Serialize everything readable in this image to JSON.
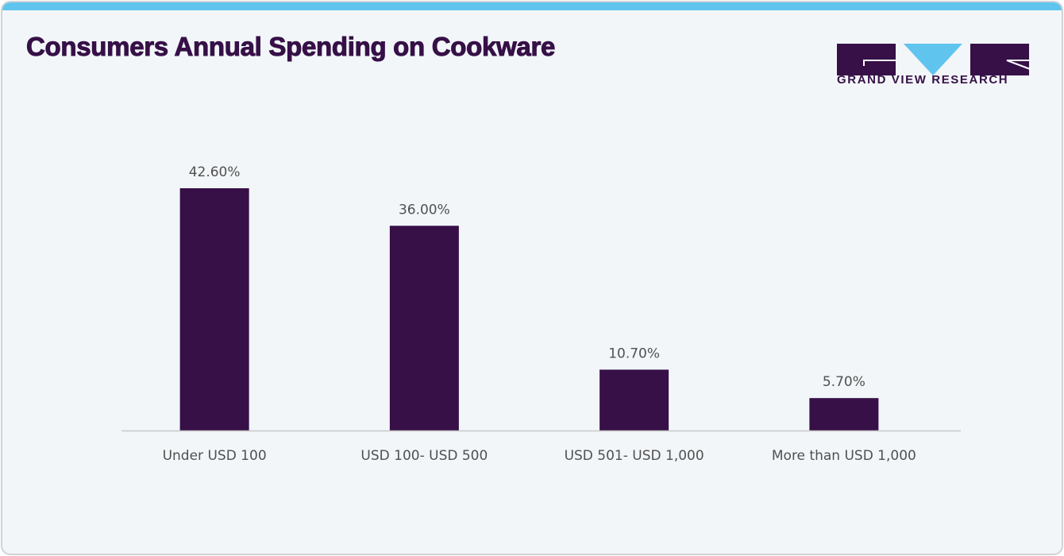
{
  "header": {
    "title": "Consumers Annual Spending on Cookware"
  },
  "brand": {
    "logo_text": "GRAND VIEW RESEARCH",
    "primary_color": "#361047",
    "accent_color": "#5fc5ef"
  },
  "chart_data": {
    "type": "bar",
    "title": "Consumers Annual Spending on Cookware",
    "categories": [
      "Under USD 100",
      "USD 100- USD 500",
      "USD 501- USD 1,000",
      "More than USD 1,000"
    ],
    "values": [
      42.6,
      36.0,
      10.7,
      5.7
    ],
    "data_labels": [
      "42.60%",
      "36.00%",
      "10.70%",
      "5.70%"
    ],
    "xlabel": "",
    "ylabel": "",
    "ylim": [
      0,
      45
    ],
    "grid": false,
    "legend": "none",
    "bar_color": "#361047"
  }
}
